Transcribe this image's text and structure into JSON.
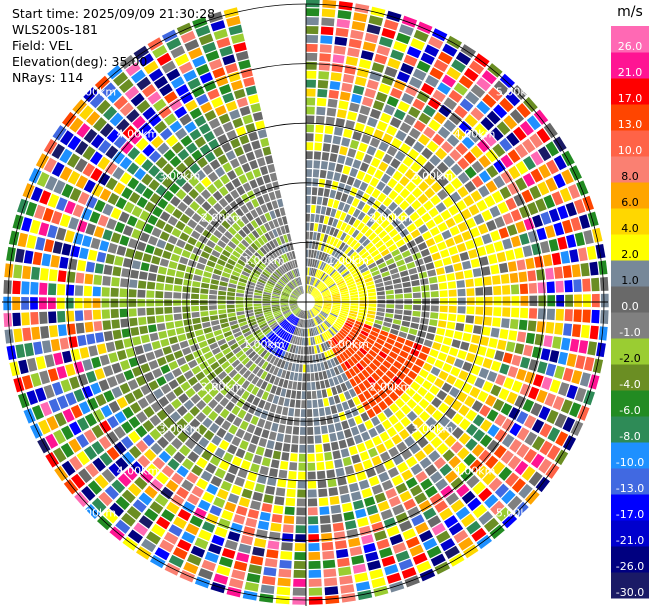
{
  "header": {
    "start_time": "Start time: 2025/09/09 21:30:28",
    "instrument": "WLS200s-181",
    "field": "Field: VEL",
    "elevation": "Elevation(deg): 35.00",
    "nrays": "NRays: 114"
  },
  "chart_data": {
    "type": "heatmap",
    "subtype": "ppi-polar-scan",
    "field": "VEL",
    "units": "m/s",
    "elevation_deg": 35.0,
    "n_rays": 114,
    "range_rings_km": [
      1.0,
      2.0,
      3.0,
      4.0,
      5.0
    ],
    "ring_labels": [
      "1.00km",
      "2.00km",
      "3.00km",
      "4.00km",
      "5.00km"
    ],
    "max_range_km": 5.1,
    "missing_sector_deg": [
      345,
      360
    ],
    "colorbar": {
      "unit_label": "m/s",
      "levels": [
        -30.0,
        -26.0,
        -21.0,
        -17.0,
        -13.0,
        -10.0,
        -8.0,
        -6.0,
        -4.0,
        -2.0,
        -1.0,
        0.0,
        1.0,
        2.0,
        4.0,
        6.0,
        8.0,
        10.0,
        13.0,
        17.0,
        21.0,
        26.0,
        30.0
      ],
      "tick_labels": [
        "-30.0",
        "-26.0",
        "-21.0",
        "-17.0",
        "-13.0",
        "-10.0",
        "-8.0",
        "-6.0",
        "-4.0",
        "-2.0",
        "-1.0",
        "0.0",
        "1.0",
        "2.0",
        "4.0",
        "6.0",
        "8.0",
        "10.0",
        "13.0",
        "17.0",
        "21.0",
        "26.0"
      ],
      "colors": [
        "#1a1a66",
        "#000080",
        "#0000cd",
        "#0000ff",
        "#4169e1",
        "#1e90ff",
        "#2e8b57",
        "#228b22",
        "#6b8e23",
        "#9acd32",
        "#808080",
        "#696969",
        "#778899",
        "#ffff00",
        "#ffd700",
        "#ffa500",
        "#fa8072",
        "#ff6347",
        "#ff4500",
        "#ff0000",
        "#ff1493",
        "#ff69b4"
      ]
    }
  }
}
